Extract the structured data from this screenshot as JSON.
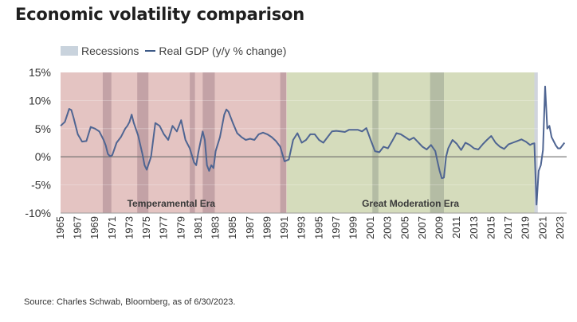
{
  "title": "Economic volatility comparison",
  "source": "Source: Charles Schwab, Bloomberg, as of 6/30/2023.",
  "legend": {
    "recessions_label": "Recessions",
    "gdp_label": "Real GDP (y/y % change)"
  },
  "colors": {
    "temperamental_era": "#e4c4c2",
    "moderation_era": "#d5dcbc",
    "recession_temperamental": "#c3a2a6",
    "recession_moderation": "#b4bca4",
    "recession_recent": "#d0d4dc",
    "line": "#4f6592",
    "zero_line": "#6b6b6b"
  },
  "chart_data": {
    "type": "line",
    "ylim": [
      -10,
      15
    ],
    "xlim": [
      1965.0,
      2023.75
    ],
    "yticks": [
      -10,
      -5,
      0,
      5,
      10,
      15
    ],
    "ytick_labels": [
      "-10%",
      "-5%",
      "0%",
      "5%",
      "10%",
      "15%"
    ],
    "xtick_labels": [
      "1965",
      "1967",
      "1969",
      "1971",
      "1973",
      "1975",
      "1977",
      "1979",
      "1981",
      "1983",
      "1985",
      "1987",
      "1989",
      "1991",
      "1993",
      "1995",
      "1997",
      "1999",
      "2001",
      "2003",
      "2005",
      "2007",
      "2009",
      "2011",
      "2013",
      "2015",
      "2017",
      "2019",
      "2021",
      "2023"
    ],
    "grid": "horizontal",
    "legend_position": "top",
    "eras": [
      {
        "label": "Temperamental Era",
        "start": 1965.0,
        "end": 1991.25
      },
      {
        "label": "Great Moderation Era",
        "start": 1991.25,
        "end": 2020.0
      }
    ],
    "recessions": [
      [
        1969.9,
        1970.9
      ],
      [
        1973.9,
        1975.2
      ],
      [
        1980.0,
        1980.6
      ],
      [
        1981.5,
        1982.9
      ],
      [
        1990.5,
        1991.2
      ],
      [
        2001.2,
        2001.9
      ],
      [
        2007.9,
        2009.5
      ],
      [
        2020.0,
        2020.4
      ]
    ],
    "series": [
      {
        "name": "Real GDP (y/y % change)",
        "x": [
          1965.0,
          1965.5,
          1966.0,
          1966.25,
          1966.5,
          1967.0,
          1967.5,
          1968.0,
          1968.5,
          1969.0,
          1969.5,
          1970.0,
          1970.25,
          1970.5,
          1970.75,
          1971.0,
          1971.5,
          1972.0,
          1972.5,
          1972.75,
          1973.0,
          1973.25,
          1973.5,
          1974.0,
          1974.5,
          1974.75,
          1975.0,
          1975.5,
          1975.75,
          1976.0,
          1976.5,
          1977.0,
          1977.5,
          1978.0,
          1978.5,
          1979.0,
          1979.5,
          1980.0,
          1980.5,
          1980.75,
          1981.0,
          1981.5,
          1981.75,
          1982.0,
          1982.25,
          1982.5,
          1982.75,
          1983.0,
          1983.5,
          1984.0,
          1984.25,
          1984.5,
          1985.0,
          1985.5,
          1986.0,
          1986.5,
          1987.0,
          1987.5,
          1988.0,
          1988.5,
          1989.0,
          1989.5,
          1990.0,
          1990.5,
          1991.0,
          1991.5,
          1992.0,
          1992.5,
          1993.0,
          1993.5,
          1994.0,
          1994.5,
          1995.0,
          1995.5,
          1996.0,
          1996.5,
          1997.0,
          1997.5,
          1998.0,
          1998.5,
          1999.0,
          1999.5,
          2000.0,
          2000.5,
          2001.0,
          2001.5,
          2002.0,
          2002.5,
          2003.0,
          2003.5,
          2004.0,
          2004.5,
          2005.0,
          2005.5,
          2006.0,
          2006.5,
          2007.0,
          2007.5,
          2008.0,
          2008.5,
          2008.75,
          2009.0,
          2009.25,
          2009.5,
          2009.75,
          2010.0,
          2010.5,
          2011.0,
          2011.5,
          2012.0,
          2012.5,
          2013.0,
          2013.5,
          2014.0,
          2014.5,
          2015.0,
          2015.5,
          2016.0,
          2016.5,
          2017.0,
          2017.5,
          2018.0,
          2018.5,
          2019.0,
          2019.5,
          2019.75,
          2020.0,
          2020.25,
          2020.5,
          2020.75,
          2021.0,
          2021.25,
          2021.5,
          2021.75,
          2022.0,
          2022.5,
          2022.75,
          2023.0,
          2023.5
        ],
        "y": [
          5.5,
          6.2,
          8.5,
          8.3,
          7.0,
          4.0,
          2.7,
          2.8,
          5.3,
          5.0,
          4.5,
          3.0,
          2.0,
          0.5,
          0.1,
          0.3,
          2.5,
          3.5,
          5.0,
          5.5,
          6.2,
          7.5,
          6.0,
          3.8,
          0.5,
          -1.5,
          -2.3,
          0.0,
          3.0,
          6.0,
          5.5,
          4.0,
          3.0,
          5.5,
          4.5,
          6.5,
          3.0,
          1.5,
          -1.0,
          -1.5,
          0.8,
          4.5,
          3.0,
          -1.5,
          -2.5,
          -1.5,
          -2.0,
          1.0,
          3.5,
          7.5,
          8.4,
          8.0,
          6.0,
          4.2,
          3.5,
          3.0,
          3.2,
          3.0,
          4.0,
          4.3,
          4.0,
          3.5,
          2.8,
          1.8,
          -0.8,
          -0.5,
          3.0,
          4.2,
          2.5,
          3.0,
          4.0,
          4.0,
          3.0,
          2.5,
          3.5,
          4.5,
          4.6,
          4.5,
          4.4,
          4.8,
          4.8,
          4.8,
          4.5,
          5.1,
          3.0,
          1.0,
          0.8,
          1.8,
          1.5,
          2.8,
          4.2,
          4.0,
          3.5,
          3.0,
          3.4,
          2.6,
          1.8,
          1.3,
          2.1,
          1.0,
          -0.8,
          -2.5,
          -3.8,
          -3.7,
          0.0,
          1.5,
          3.0,
          2.3,
          1.2,
          2.5,
          2.1,
          1.5,
          1.3,
          2.2,
          3.0,
          3.7,
          2.5,
          1.8,
          1.4,
          2.2,
          2.5,
          2.8,
          3.1,
          2.7,
          2.1,
          2.3,
          2.4,
          -8.5,
          -2.5,
          -1.5,
          1.2,
          12.5,
          5.0,
          5.5,
          3.5,
          2.0,
          1.5,
          1.5,
          2.5
        ]
      }
    ]
  }
}
